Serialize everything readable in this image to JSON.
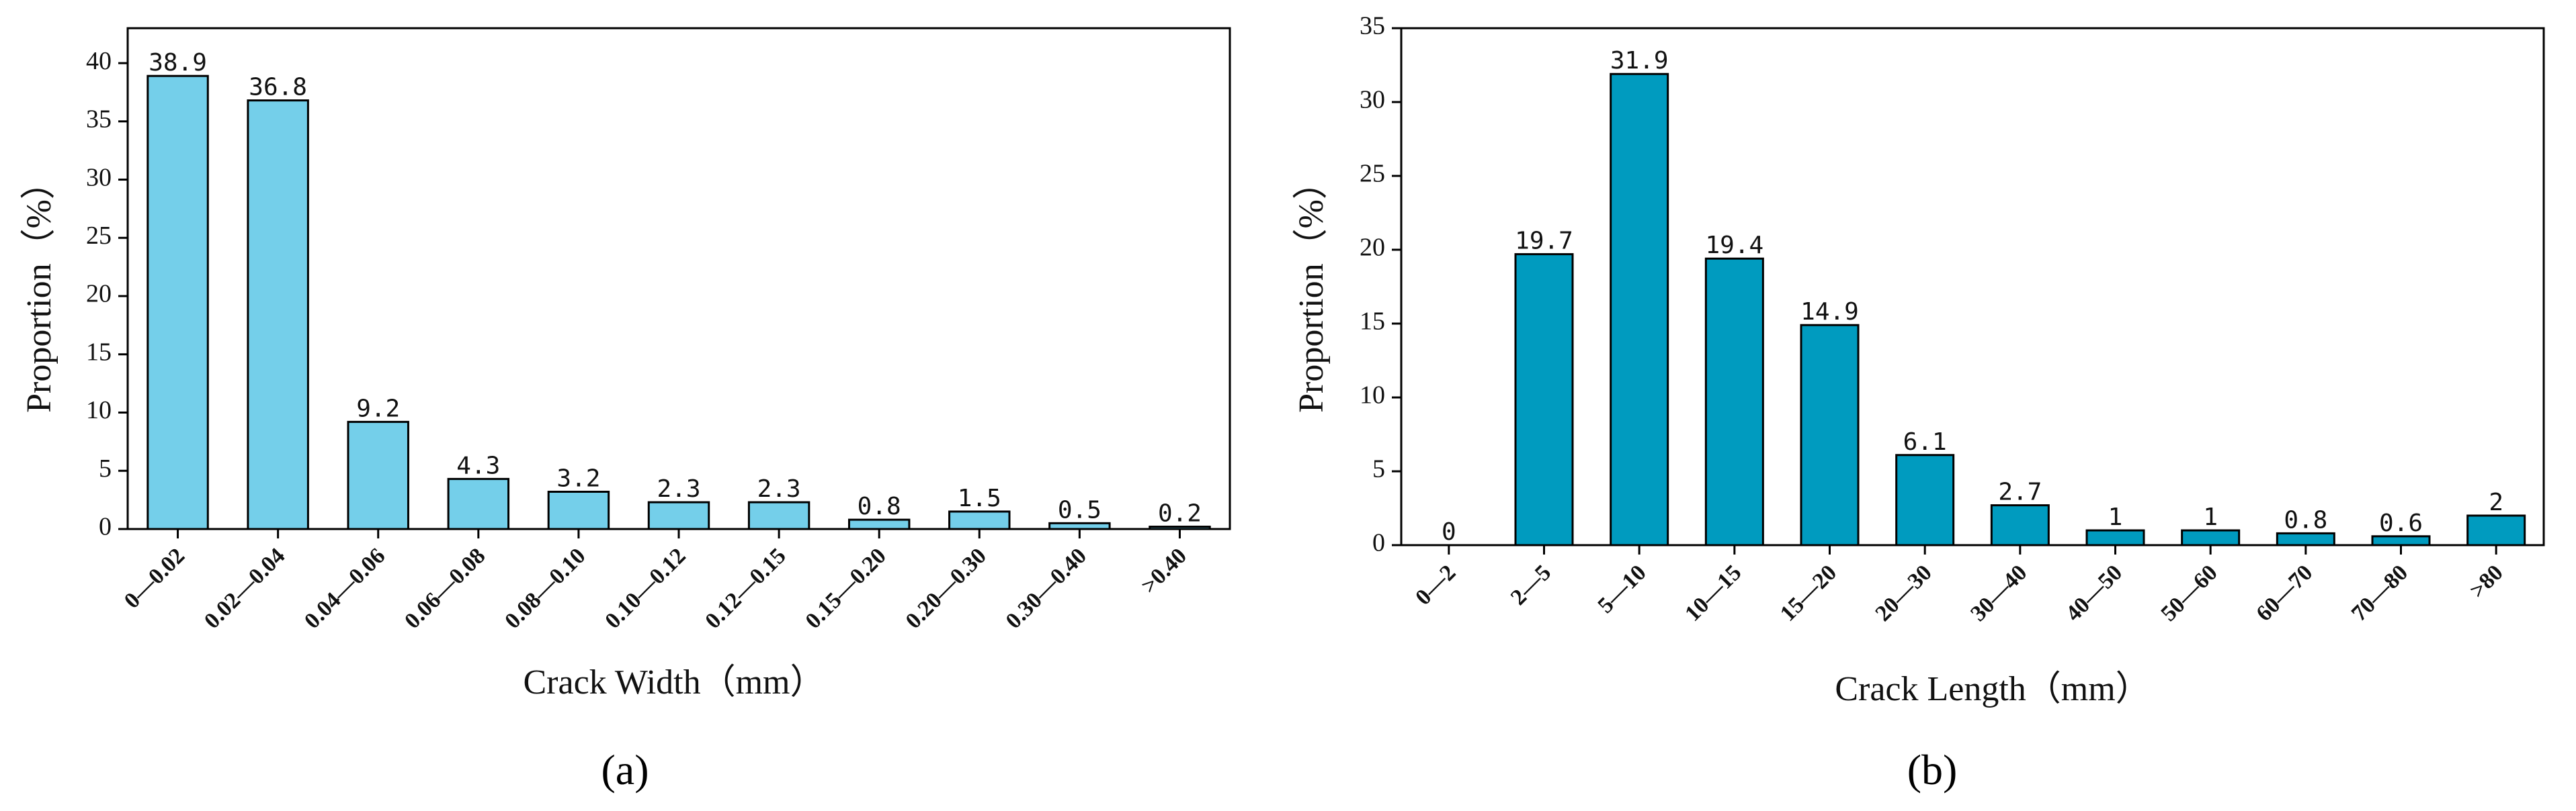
{
  "chart_data": [
    {
      "type": "bar",
      "panel_label": "(a)",
      "color": "#74CFEA",
      "categories": [
        "0—0.02",
        "0.02—0.04",
        "0.04—0.06",
        "0.06—0.08",
        "0.08—0.10",
        "0.10—0.12",
        "0.12—0.15",
        "0.15—0.20",
        "0.20—0.30",
        "0.30—0.40",
        ">0.40"
      ],
      "values": [
        38.9,
        36.8,
        9.2,
        4.3,
        3.2,
        2.3,
        2.3,
        0.8,
        1.5,
        0.5,
        0.2
      ],
      "value_labels": [
        "38.9",
        "36.8",
        "9.2",
        "4.3",
        "3.2",
        "2.3",
        "2.3",
        "0.8",
        "1.5",
        "0.5",
        "0.2"
      ],
      "xlabel": "Crack Width（mm）",
      "ylabel": "Proportion（%）",
      "ylim": [
        0,
        43
      ],
      "yticks": [
        0,
        5,
        10,
        15,
        20,
        25,
        30,
        35,
        40
      ],
      "grid": false
    },
    {
      "type": "bar",
      "panel_label": "(b)",
      "color": "#009BBF",
      "categories": [
        "0—2",
        "2—5",
        "5—10",
        "10—15",
        "15—20",
        "20—30",
        "30—40",
        "40—50",
        "50—60",
        "60—70",
        "70—80",
        ">80"
      ],
      "values": [
        0,
        19.7,
        31.9,
        19.4,
        14.9,
        6.1,
        2.7,
        1,
        1,
        0.8,
        0.6,
        2
      ],
      "value_labels": [
        "0",
        "19.7",
        "31.9",
        "19.4",
        "14.9",
        "6.1",
        "2.7",
        "1",
        "1",
        "0.8",
        "0.6",
        "2"
      ],
      "xlabel": "Crack Length（mm）",
      "ylabel": "Proportion（%）",
      "ylim": [
        0,
        35
      ],
      "yticks": [
        0,
        5,
        10,
        15,
        20,
        25,
        30,
        35
      ],
      "grid": false
    }
  ]
}
